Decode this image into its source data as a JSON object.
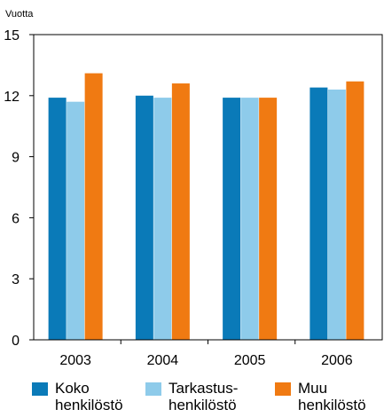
{
  "chart_data": {
    "type": "bar",
    "title": "",
    "ylabel": "Vuotta",
    "xlabel": "",
    "ylim": [
      0,
      15
    ],
    "yticks": [
      0,
      3,
      6,
      9,
      12,
      15
    ],
    "grid": false,
    "legend_position": "bottom",
    "categories": [
      "2003",
      "2004",
      "2005",
      "2006"
    ],
    "series": [
      {
        "name": "Koko\nhenkilöstö",
        "color": "#0a7ab8",
        "values": [
          11.9,
          12.0,
          11.9,
          12.4
        ]
      },
      {
        "name": "Tarkastus-\nhenkilöstö",
        "color": "#8ecbea",
        "values": [
          11.7,
          11.9,
          11.9,
          12.3
        ]
      },
      {
        "name": "Muu\nhenkilöstö",
        "color": "#f07a12",
        "values": [
          13.1,
          12.6,
          11.9,
          12.7
        ]
      }
    ]
  }
}
